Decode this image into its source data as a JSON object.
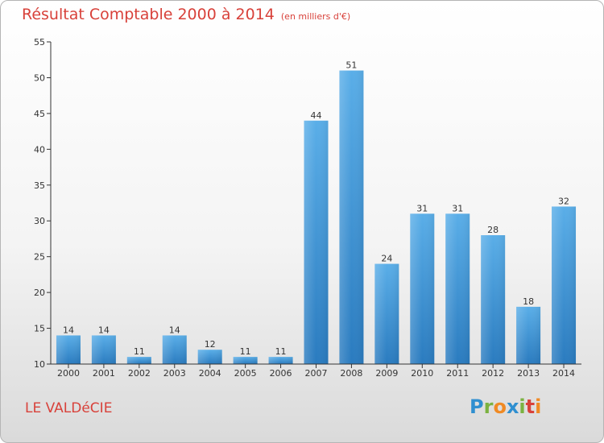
{
  "header": {
    "title": "Résultat Comptable 2000 à 2014",
    "subtitle": "(en milliers d'€)"
  },
  "footer": {
    "city": "LE VALDéCIE",
    "logo_letters": [
      "P",
      "r",
      "o",
      "x",
      "i",
      "t",
      "i"
    ]
  },
  "colors": {
    "title": "#d8413a",
    "bar_top": "#5aaee8",
    "bar_bottom": "#2a7bbf",
    "axis": "#333333"
  },
  "chart_data": {
    "type": "bar",
    "title": "Résultat Comptable 2000 à 2014",
    "xlabel": "",
    "ylabel": "",
    "categories": [
      "2000",
      "2001",
      "2002",
      "2003",
      "2004",
      "2005",
      "2006",
      "2007",
      "2008",
      "2009",
      "2010",
      "2011",
      "2012",
      "2013",
      "2014"
    ],
    "values": [
      14,
      14,
      11,
      14,
      12,
      11,
      11,
      44,
      51,
      24,
      31,
      31,
      28,
      18,
      32
    ],
    "ylim": [
      10,
      55
    ],
    "yticks": [
      10,
      15,
      20,
      25,
      30,
      35,
      40,
      45,
      50,
      55
    ],
    "grid": false,
    "legend": "none"
  }
}
